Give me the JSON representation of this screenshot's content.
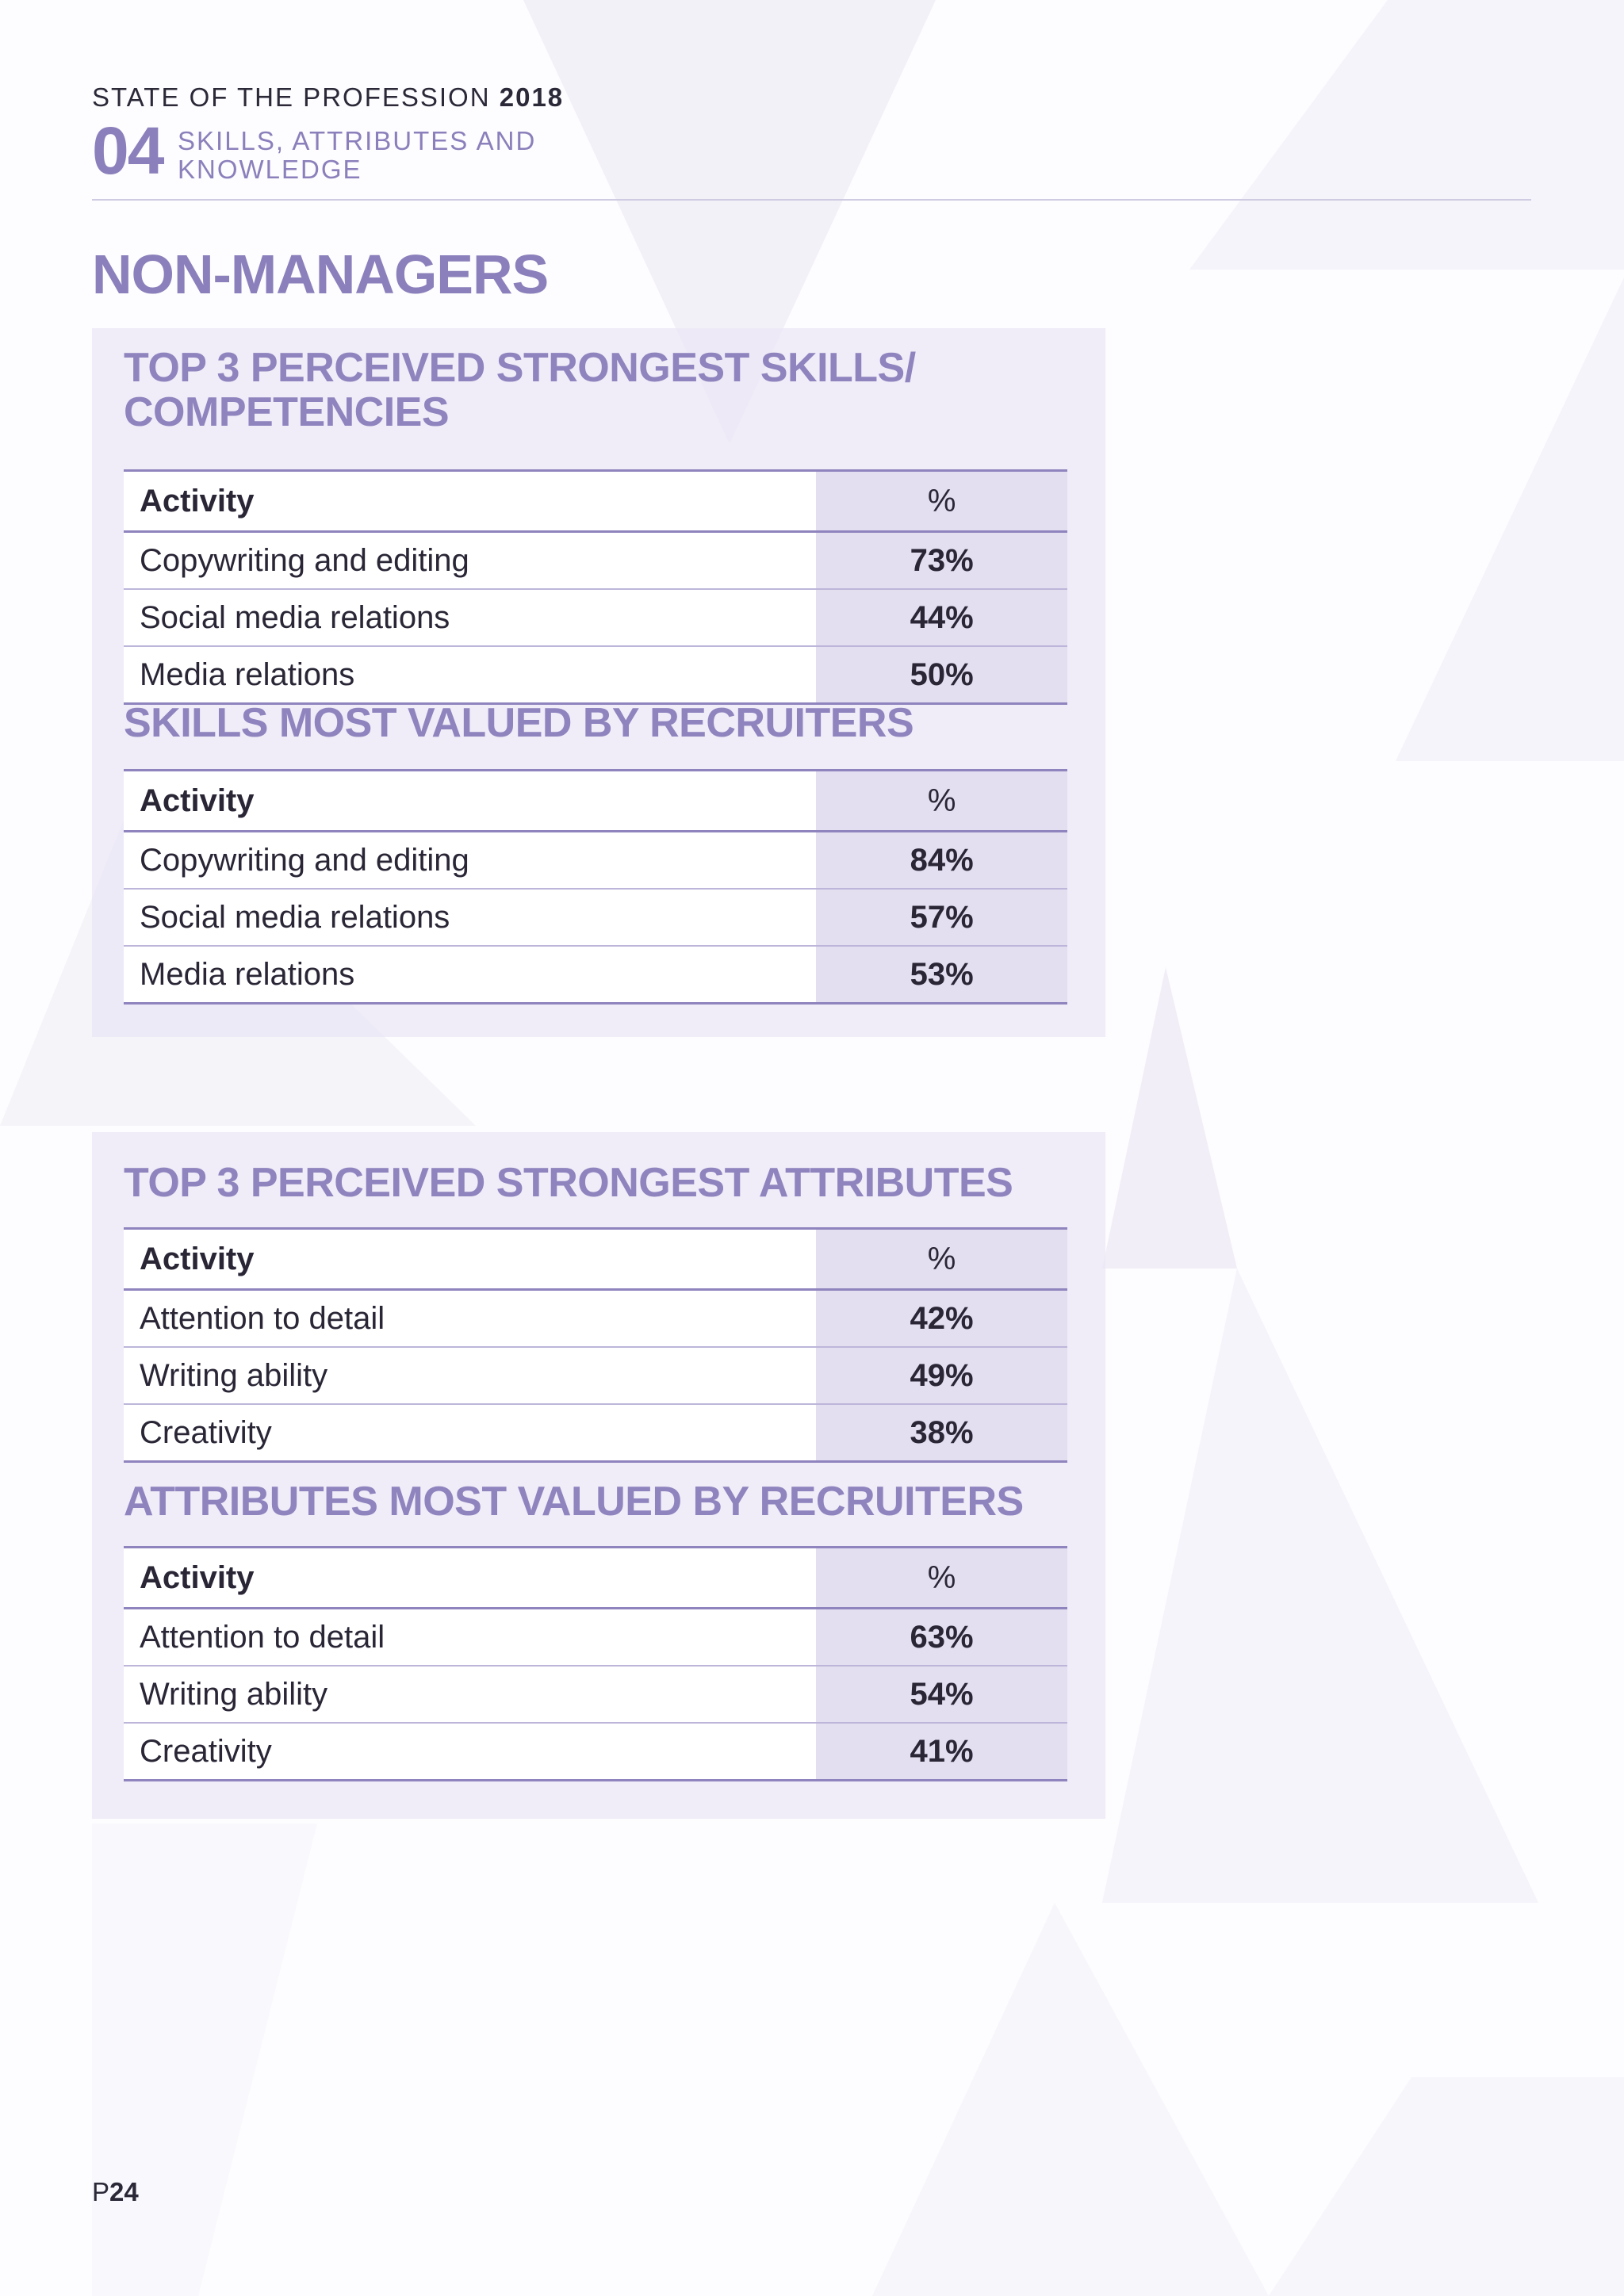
{
  "header": {
    "report_title": "STATE OF THE PROFESSION",
    "report_year": "2018",
    "chapter_number": "04",
    "chapter_title": "SKILLS, ATTRIBUTES AND KNOWLEDGE"
  },
  "section_title": "NON-MANAGERS",
  "tables": [
    {
      "title": "TOP 3 PERCEIVED STRONGEST SKILLS/ COMPETENCIES",
      "headers": [
        "Activity",
        "%"
      ],
      "rows": [
        [
          "Copywriting and editing",
          "73%"
        ],
        [
          "Social media relations",
          "44%"
        ],
        [
          "Media relations",
          "50%"
        ]
      ]
    },
    {
      "title": "SKILLS MOST VALUED BY RECRUITERS",
      "headers": [
        "Activity",
        "%"
      ],
      "rows": [
        [
          "Copywriting and editing",
          "84%"
        ],
        [
          "Social media relations",
          "57%"
        ],
        [
          "Media relations",
          "53%"
        ]
      ]
    },
    {
      "title": "TOP 3 PERCEIVED STRONGEST ATTRIBUTES",
      "headers": [
        "Activity",
        "%"
      ],
      "rows": [
        [
          "Attention to detail",
          "42%"
        ],
        [
          "Writing ability",
          "49%"
        ],
        [
          "Creativity",
          "38%"
        ]
      ]
    },
    {
      "title": "ATTRIBUTES MOST VALUED BY RECRUITERS",
      "headers": [
        "Activity",
        "%"
      ],
      "rows": [
        [
          "Attention to detail",
          "63%"
        ],
        [
          "Writing ability",
          "54%"
        ],
        [
          "Creativity",
          "41%"
        ]
      ]
    }
  ],
  "footer": {
    "page_prefix": "P",
    "page_number": "24"
  },
  "colors": {
    "accent": "#8b80bb",
    "panel": "#eae6f5",
    "value_column": "#e3dff1",
    "text": "#2a2636"
  }
}
